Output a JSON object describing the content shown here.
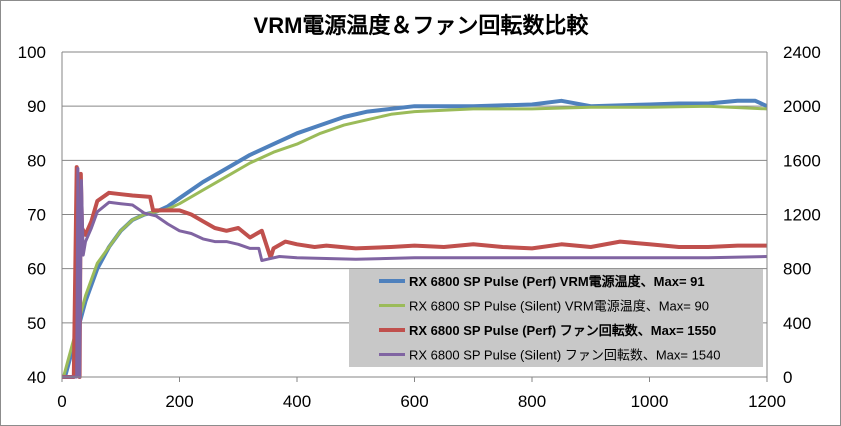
{
  "chart_data": {
    "type": "line",
    "title": "VRM電源温度＆ファン回転数比較",
    "x_axis": {
      "min": 0,
      "max": 1200,
      "ticks": [
        "0",
        "200",
        "400",
        "600",
        "800",
        "1000",
        "1200"
      ]
    },
    "y_left": {
      "min": 40,
      "max": 100,
      "ticks": [
        "40",
        "50",
        "60",
        "70",
        "80",
        "90",
        "100"
      ]
    },
    "y_right": {
      "min": 0,
      "max": 2400,
      "ticks": [
        "0",
        "400",
        "800",
        "1200",
        "1600",
        "2000",
        "2400"
      ]
    },
    "grid": "horizontal",
    "legend_position": "bottom-right",
    "series": [
      {
        "name": "RX 6800 SP Pulse (Perf) VRM電源温度、Max= 91",
        "axis": "left",
        "color": "#4f81bd",
        "bold": true,
        "points": [
          [
            0,
            38
          ],
          [
            10,
            42
          ],
          [
            20,
            46
          ],
          [
            30,
            50
          ],
          [
            40,
            54
          ],
          [
            50,
            57
          ],
          [
            60,
            60
          ],
          [
            80,
            64
          ],
          [
            100,
            67
          ],
          [
            120,
            69
          ],
          [
            140,
            70
          ],
          [
            160,
            70.5
          ],
          [
            180,
            71.5
          ],
          [
            200,
            73
          ],
          [
            240,
            76
          ],
          [
            280,
            78.5
          ],
          [
            320,
            81
          ],
          [
            360,
            83
          ],
          [
            400,
            85
          ],
          [
            440,
            86.5
          ],
          [
            480,
            88
          ],
          [
            520,
            89
          ],
          [
            560,
            89.5
          ],
          [
            600,
            90
          ],
          [
            700,
            90
          ],
          [
            800,
            90.3
          ],
          [
            850,
            91
          ],
          [
            900,
            90
          ],
          [
            1000,
            90.3
          ],
          [
            1050,
            90.5
          ],
          [
            1100,
            90.5
          ],
          [
            1150,
            91
          ],
          [
            1180,
            91
          ],
          [
            1200,
            90
          ]
        ]
      },
      {
        "name": "RX 6800 SP Pulse (Silent) VRM電源温度、Max= 90",
        "axis": "left",
        "color": "#9bbb59",
        "bold": false,
        "points": [
          [
            0,
            39
          ],
          [
            10,
            43
          ],
          [
            20,
            47
          ],
          [
            30,
            51
          ],
          [
            40,
            55
          ],
          [
            50,
            58
          ],
          [
            60,
            61
          ],
          [
            80,
            64
          ],
          [
            100,
            67
          ],
          [
            120,
            69
          ],
          [
            140,
            70
          ],
          [
            160,
            70.5
          ],
          [
            180,
            71
          ],
          [
            200,
            72
          ],
          [
            240,
            74.5
          ],
          [
            280,
            77
          ],
          [
            320,
            79.5
          ],
          [
            360,
            81.5
          ],
          [
            400,
            83
          ],
          [
            440,
            85
          ],
          [
            480,
            86.5
          ],
          [
            520,
            87.5
          ],
          [
            560,
            88.5
          ],
          [
            600,
            89
          ],
          [
            700,
            89.5
          ],
          [
            800,
            89.5
          ],
          [
            900,
            89.8
          ],
          [
            1000,
            89.8
          ],
          [
            1100,
            90
          ],
          [
            1200,
            89.5
          ]
        ]
      },
      {
        "name": "RX 6800 SP Pulse (Perf) ファン回転数、Max= 1550",
        "axis": "right",
        "color": "#c0504d",
        "bold": true,
        "points": [
          [
            0,
            0
          ],
          [
            20,
            0
          ],
          [
            25,
            1550
          ],
          [
            28,
            1000
          ],
          [
            30,
            0
          ],
          [
            32,
            1500
          ],
          [
            34,
            1100
          ],
          [
            40,
            1050
          ],
          [
            50,
            1150
          ],
          [
            60,
            1300
          ],
          [
            80,
            1360
          ],
          [
            100,
            1350
          ],
          [
            120,
            1340
          ],
          [
            150,
            1330
          ],
          [
            155,
            1230
          ],
          [
            200,
            1230
          ],
          [
            220,
            1200
          ],
          [
            240,
            1150
          ],
          [
            260,
            1100
          ],
          [
            280,
            1080
          ],
          [
            300,
            1100
          ],
          [
            320,
            1030
          ],
          [
            340,
            1080
          ],
          [
            355,
            880
          ],
          [
            360,
            950
          ],
          [
            380,
            1000
          ],
          [
            400,
            980
          ],
          [
            430,
            960
          ],
          [
            450,
            970
          ],
          [
            500,
            950
          ],
          [
            560,
            960
          ],
          [
            600,
            970
          ],
          [
            650,
            960
          ],
          [
            700,
            980
          ],
          [
            750,
            960
          ],
          [
            800,
            950
          ],
          [
            850,
            980
          ],
          [
            900,
            960
          ],
          [
            950,
            1000
          ],
          [
            1000,
            980
          ],
          [
            1050,
            960
          ],
          [
            1100,
            960
          ],
          [
            1150,
            970
          ],
          [
            1200,
            970
          ]
        ]
      },
      {
        "name": "RX 6800 SP Pulse (Silent) ファン回転数、Max= 1540",
        "axis": "right",
        "color": "#8064a2",
        "bold": false,
        "points": [
          [
            0,
            0
          ],
          [
            25,
            0
          ],
          [
            27,
            1540
          ],
          [
            30,
            0
          ],
          [
            33,
            1450
          ],
          [
            36,
            900
          ],
          [
            40,
            1000
          ],
          [
            50,
            1100
          ],
          [
            60,
            1220
          ],
          [
            80,
            1290
          ],
          [
            100,
            1280
          ],
          [
            120,
            1270
          ],
          [
            140,
            1210
          ],
          [
            160,
            1190
          ],
          [
            180,
            1130
          ],
          [
            200,
            1080
          ],
          [
            220,
            1060
          ],
          [
            240,
            1020
          ],
          [
            260,
            1000
          ],
          [
            280,
            1000
          ],
          [
            300,
            980
          ],
          [
            320,
            950
          ],
          [
            335,
            950
          ],
          [
            340,
            860
          ],
          [
            350,
            870
          ],
          [
            370,
            890
          ],
          [
            400,
            880
          ],
          [
            500,
            870
          ],
          [
            600,
            880
          ],
          [
            700,
            880
          ],
          [
            800,
            880
          ],
          [
            900,
            880
          ],
          [
            1000,
            880
          ],
          [
            1100,
            880
          ],
          [
            1200,
            890
          ]
        ]
      }
    ]
  }
}
